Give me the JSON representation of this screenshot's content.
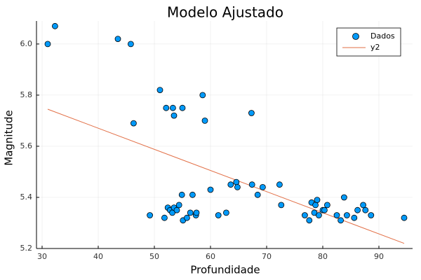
{
  "chart_data": {
    "type": "scatter",
    "title": "Modelo Ajustado",
    "xlabel": "Profundidade",
    "ylabel": "Magnitude",
    "xlim": [
      29,
      96
    ],
    "ylim": [
      5.2,
      6.09
    ],
    "xticks": [
      30,
      40,
      50,
      60,
      70,
      80,
      90
    ],
    "yticks": [
      5.2,
      5.4,
      5.6,
      5.8,
      6.0
    ],
    "grid": true,
    "legend_position": "top-right",
    "series": [
      {
        "name": "Dados",
        "kind": "scatter",
        "color": "#009AFA",
        "points": [
          [
            31,
            6.0
          ],
          [
            32.3,
            6.07
          ],
          [
            43.5,
            6.02
          ],
          [
            45.8,
            6.0
          ],
          [
            51,
            5.82
          ],
          [
            52.1,
            5.75
          ],
          [
            53.3,
            5.75
          ],
          [
            53.5,
            5.72
          ],
          [
            55,
            5.75
          ],
          [
            58.6,
            5.8
          ],
          [
            59,
            5.7
          ],
          [
            46.3,
            5.69
          ],
          [
            67.3,
            5.73
          ],
          [
            49.2,
            5.33
          ],
          [
            51.8,
            5.32
          ],
          [
            52.4,
            5.36
          ],
          [
            52.8,
            5.35
          ],
          [
            53.2,
            5.34
          ],
          [
            53.5,
            5.36
          ],
          [
            54,
            5.35
          ],
          [
            54.4,
            5.37
          ],
          [
            54.9,
            5.41
          ],
          [
            55.1,
            5.31
          ],
          [
            55.8,
            5.32
          ],
          [
            56.4,
            5.34
          ],
          [
            56.8,
            5.41
          ],
          [
            57.4,
            5.33
          ],
          [
            57.5,
            5.34
          ],
          [
            60,
            5.43
          ],
          [
            61.4,
            5.33
          ],
          [
            62.8,
            5.34
          ],
          [
            63.6,
            5.45
          ],
          [
            64.6,
            5.46
          ],
          [
            64.8,
            5.44
          ],
          [
            67.4,
            5.45
          ],
          [
            68.4,
            5.41
          ],
          [
            69.3,
            5.44
          ],
          [
            72.3,
            5.45
          ],
          [
            72.6,
            5.37
          ],
          [
            76.8,
            5.33
          ],
          [
            77.6,
            5.31
          ],
          [
            78,
            5.38
          ],
          [
            78.5,
            5.34
          ],
          [
            78.7,
            5.37
          ],
          [
            79,
            5.39
          ],
          [
            79.3,
            5.33
          ],
          [
            80,
            5.35
          ],
          [
            80.3,
            5.35
          ],
          [
            80.8,
            5.37
          ],
          [
            82.5,
            5.33
          ],
          [
            83.2,
            5.31
          ],
          [
            83.8,
            5.4
          ],
          [
            84.3,
            5.33
          ],
          [
            85.6,
            5.32
          ],
          [
            86.2,
            5.35
          ],
          [
            87.2,
            5.37
          ],
          [
            87.6,
            5.35
          ],
          [
            88.6,
            5.33
          ],
          [
            94.5,
            5.32
          ]
        ]
      },
      {
        "name": "y2",
        "kind": "line",
        "color": "#E26F46",
        "points": [
          [
            31,
            5.745
          ],
          [
            94.5,
            5.22
          ]
        ]
      }
    ]
  }
}
